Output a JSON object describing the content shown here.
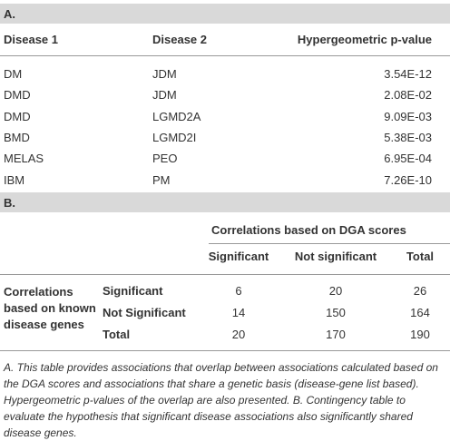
{
  "section_a": {
    "label": "A.",
    "header": [
      "Disease 1",
      "Disease 2",
      "Hypergeometric p-value"
    ],
    "rows": [
      [
        "DM",
        "JDM",
        "3.54E-12"
      ],
      [
        "DMD",
        "JDM",
        "2.08E-02"
      ],
      [
        "DMD",
        "LGMD2A",
        "9.09E-03"
      ],
      [
        "BMD",
        "LGMD2I",
        "5.38E-03"
      ],
      [
        "MELAS",
        "PEO",
        "6.95E-04"
      ],
      [
        "IBM",
        "PM",
        "7.26E-10"
      ]
    ]
  },
  "section_b": {
    "label": "B.",
    "column_group": "Correlations based on DGA scores",
    "columns": [
      "Significant",
      "Not significant",
      "Total"
    ],
    "row_group": "Correlations based on known disease genes",
    "rows": [
      {
        "label": "Significant",
        "cells": [
          "6",
          "20",
          "26"
        ]
      },
      {
        "label": "Not Significant",
        "cells": [
          "14",
          "150",
          "164"
        ]
      },
      {
        "label": "Total",
        "cells": [
          "20",
          "170",
          "190"
        ]
      }
    ]
  },
  "footnote": "A. This table provides associations that overlap between associations calculated based on the DGA scores and associations that share a genetic basis (disease-gene list based). Hypergeometric p-values of the overlap are also presented. B. Contingency table to evaluate the hypothesis that significant disease associations also significantly shared disease genes."
}
